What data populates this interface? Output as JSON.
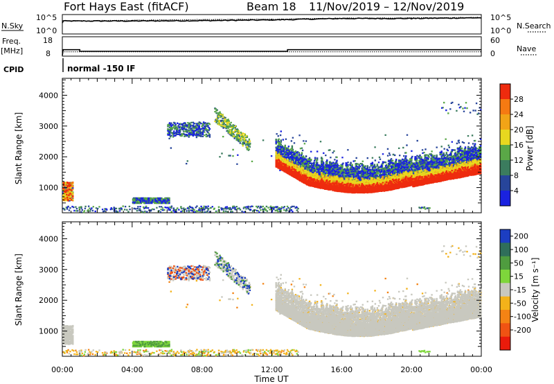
{
  "header": {
    "title": "Fort Hays East (fitACF)",
    "beam": "Beam 18",
    "date_range": "11/Nov/2019 – 12/Nov/2019"
  },
  "status_panel": {
    "nsky_label": "N.Sky",
    "nsearch_label": "N.Search",
    "freq_label_1": "Freq.",
    "freq_label_2": "[MHz]",
    "nave_label": "Nave",
    "cpid_label": "CPID",
    "cpid_text": "normal -150 IF",
    "nsky_ticks": [
      "10^5",
      "10^0"
    ],
    "nsearch_ticks": [
      "10^5",
      "10^0"
    ],
    "freq_ticks": [
      "18",
      "8"
    ],
    "nave_ticks": [
      "60",
      "0"
    ]
  },
  "colors": {
    "power": [
      "#1a22e0",
      "#27459a",
      "#3b7c5e",
      "#5aa847",
      "#e8d81f",
      "#f1a417",
      "#f57a12",
      "#ee2b0e"
    ],
    "velocity": [
      "#1c3ec2",
      "#2f6e5a",
      "#4f9c3f",
      "#7ed63b",
      "#c8c8bf",
      "#f3b21a",
      "#f48314",
      "#f05313",
      "#ea1b0b"
    ],
    "ground_scatter": "#c8c8bf"
  },
  "x_axis": {
    "title": "Time UT",
    "ticks": [
      "00:00",
      "04:00",
      "08:00",
      "12:00",
      "16:00",
      "20:00",
      "00:00"
    ]
  },
  "y_axis": {
    "title": "Slant Range [km]",
    "ticks": [
      "1000",
      "2000",
      "3000",
      "4000"
    ]
  },
  "colorbars": {
    "power": {
      "label": "Power [dB]",
      "ticks": [
        "4",
        "8",
        "12",
        "16",
        "20",
        "24",
        "28"
      ]
    },
    "velocity": {
      "label": "Velocity [m s⁻¹]",
      "ticks": [
        "200",
        "100",
        "50",
        "15",
        "-15",
        "-50",
        "-100",
        "-200"
      ]
    }
  },
  "chart_data": [
    {
      "type": "line",
      "title": "N.Sky / N.Search",
      "x_range_hours": [
        0,
        24
      ],
      "series": [
        {
          "name": "N.Sky",
          "style": "solid",
          "values": [
            [
              0,
              2.8
            ],
            [
              0.05,
              3.4
            ],
            [
              4,
              3.4
            ],
            [
              8,
              3.5
            ],
            [
              12,
              3.7
            ],
            [
              16,
              4.1
            ],
            [
              20,
              4.1
            ],
            [
              24,
              4.3
            ]
          ]
        },
        {
          "name": "N.Search",
          "style": "dotted",
          "values": [
            [
              0,
              3.4
            ],
            [
              4,
              3.6
            ],
            [
              8,
              3.8
            ],
            [
              12,
              3.9
            ],
            [
              16,
              4.2
            ],
            [
              20,
              4.3
            ],
            [
              24,
              4.4
            ]
          ]
        }
      ]
    },
    {
      "type": "line",
      "title": "Freq. / Nave",
      "x_range_hours": [
        0,
        24
      ],
      "series": [
        {
          "name": "Freq. [MHz]",
          "style": "solid",
          "values": [
            [
              0,
              8
            ],
            [
              0.05,
              11.2
            ],
            [
              1,
              11.2
            ],
            [
              1,
              10.3
            ],
            [
              12.9,
              10.3
            ],
            [
              12.9,
              11.2
            ],
            [
              24,
              11.2
            ]
          ]
        },
        {
          "name": "Nave",
          "style": "dotted",
          "values": [
            [
              0,
              12
            ],
            [
              24,
              12
            ]
          ]
        }
      ]
    },
    {
      "type": "heatmap",
      "title": "Power [dB]",
      "x_label": "Time UT",
      "y_label": "Slant Range [km]",
      "x_range_hours": [
        0,
        24
      ],
      "y_range_km": [
        180,
        4550
      ],
      "color_range_db": [
        0,
        32
      ],
      "features": [
        {
          "t_start": 0.0,
          "t_end": 0.6,
          "r_min": 600,
          "r_max": 1200,
          "dominant": "mixed"
        },
        {
          "t_start": 4.0,
          "t_end": 6.1,
          "r_min": 520,
          "r_max": 700,
          "dominant": "low-mid"
        },
        {
          "t_start": 6.0,
          "t_end": 8.4,
          "r_min": 2700,
          "r_max": 3150,
          "dominant": "low"
        },
        {
          "t_start": 8.7,
          "t_end": 10.7,
          "r_min": 2350,
          "r_max": 3550,
          "dominant": "mid"
        },
        {
          "t_start": 12.2,
          "t_end": 24.0,
          "r_min": 900,
          "r_max": 2200,
          "dominant": "high"
        },
        {
          "t_start": 21.7,
          "t_end": 24.0,
          "r_min": 3400,
          "r_max": 3800,
          "dominant": "low"
        },
        {
          "t_start": 0.0,
          "t_end": 13.5,
          "r_min": 190,
          "r_max": 420,
          "dominant": "low"
        }
      ]
    },
    {
      "type": "heatmap",
      "title": "Velocity [m s⁻¹]",
      "x_label": "Time UT",
      "y_label": "Slant Range [km]",
      "x_range_hours": [
        0,
        24
      ],
      "y_range_km": [
        180,
        4550
      ],
      "color_range_ms": [
        -200,
        200
      ],
      "features": [
        {
          "t_start": 0.0,
          "t_end": 0.6,
          "r_min": 600,
          "r_max": 1200,
          "dominant": "ground"
        },
        {
          "t_start": 4.0,
          "t_end": 6.1,
          "r_min": 520,
          "r_max": 700,
          "dominant": "50"
        },
        {
          "t_start": 6.0,
          "t_end": 8.4,
          "r_min": 2700,
          "r_max": 3150,
          "dominant": "ground"
        },
        {
          "t_start": 8.7,
          "t_end": 10.7,
          "r_min": 2350,
          "r_max": 3550,
          "dominant": "ground"
        },
        {
          "t_start": 12.2,
          "t_end": 24.0,
          "r_min": 900,
          "r_max": 2600,
          "dominant": "ground"
        },
        {
          "t_start": 0.0,
          "t_end": 13.5,
          "r_min": 190,
          "r_max": 420,
          "dominant": "-50"
        }
      ]
    }
  ]
}
